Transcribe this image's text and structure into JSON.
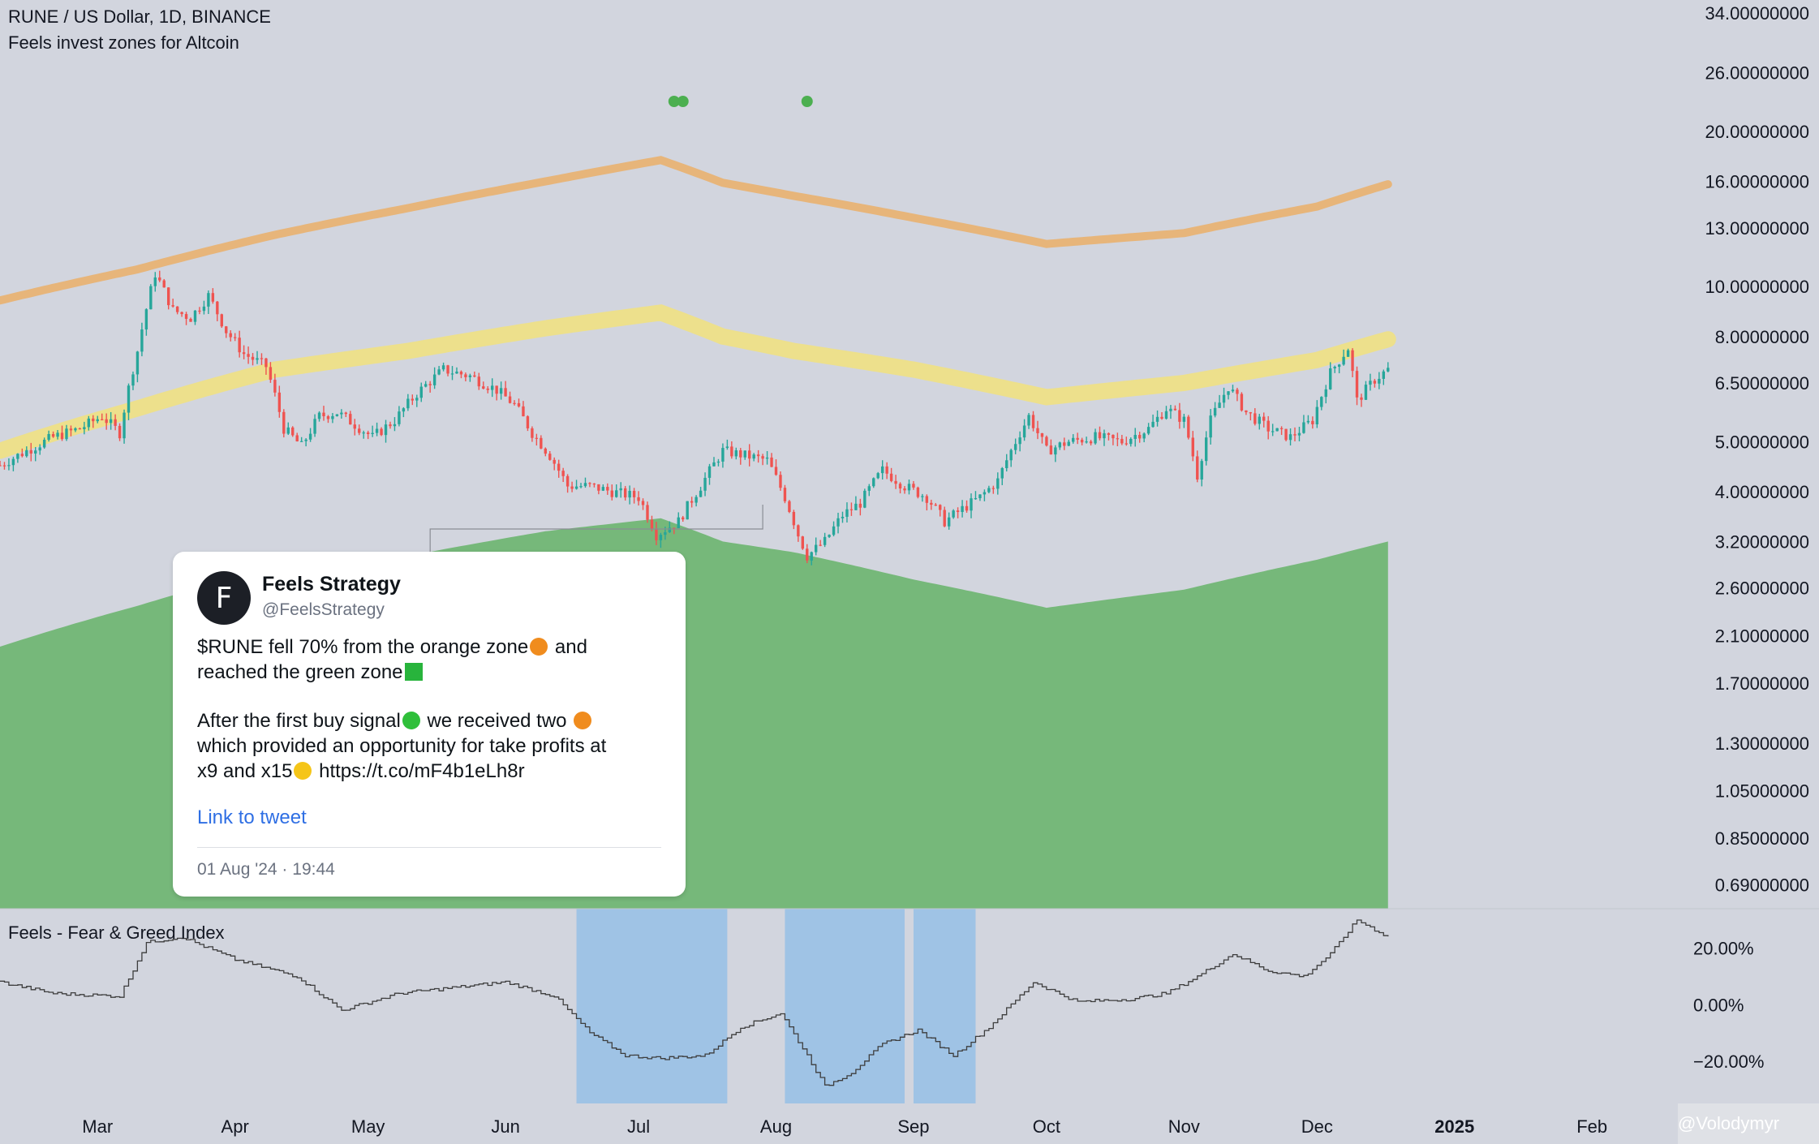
{
  "header": {
    "symbol_line": "RUNE / US Dollar, 1D, BINANCE",
    "indicator_line": "Feels invest zones for Altcoin"
  },
  "subpanel": {
    "title": "Feels - Fear & Greed Index"
  },
  "tweet": {
    "avatar_letter": "F",
    "author": "Feels Strategy",
    "handle": "@FeelsStrategy",
    "line1a": "$RUNE fell 70% from the orange zone",
    "line1b": " and",
    "line2": "reached the green zone",
    "line3a": "After the first buy signal",
    "line3b": " we received two ",
    "line4": "which provided an opportunity for take profits at",
    "line5a": "x9 and x15",
    "line5b": " https://t.co/mF4b1eLh8r",
    "link_label": "Link to tweet",
    "timestamp": "01 Aug '24 · 19:44"
  },
  "watermark": "@Volodymyr",
  "colors": {
    "background": "#d2d5de",
    "up_candle": "#26a69a",
    "down_candle": "#ef5350",
    "orange_band": "#e7b57a",
    "yellow_band": "#ede08c",
    "green_zone": "#76b87a",
    "signal_dot": "#4caf50",
    "fear_zone": "#9fc3e5",
    "index_line": "#3d3d3d"
  },
  "icons": [
    "orange-circle-emoji-icon",
    "green-square-emoji-icon",
    "green-circle-emoji-icon",
    "money-mouth-face-emoji-icon",
    "avatar-logo-icon"
  ],
  "chart_data": {
    "type": "candlestick",
    "title": "RUNE / US Dollar, 1D, BINANCE",
    "indicator": "Feels invest zones for Altcoin",
    "y_scale": "log",
    "y_ticks": [
      "34.00000000",
      "26.00000000",
      "20.00000000",
      "16.00000000",
      "13.00000000",
      "10.00000000",
      "8.00000000",
      "6.50000000",
      "5.00000000",
      "4.00000000",
      "3.20000000",
      "2.60000000",
      "2.10000000",
      "1.70000000",
      "1.30000000",
      "1.05000000",
      "0.85000000",
      "0.69000000"
    ],
    "y_tick_values": [
      34,
      26,
      20,
      16,
      13,
      10,
      8,
      6.5,
      5,
      4,
      3.2,
      2.6,
      2.1,
      1.7,
      1.3,
      1.05,
      0.85,
      0.69
    ],
    "x_ticks": [
      "Mar",
      "Apr",
      "May",
      "Jun",
      "Jul",
      "Aug",
      "Sep",
      "Oct",
      "Nov",
      "Dec",
      "2025",
      "Feb"
    ],
    "x_tick_dates": [
      "2024-03-01",
      "2024-04-01",
      "2024-05-01",
      "2024-06-01",
      "2024-07-01",
      "2024-08-01",
      "2024-09-01",
      "2024-10-01",
      "2024-11-01",
      "2024-12-01",
      "2025-01-01",
      "2025-02-01"
    ],
    "x_range": [
      "2024-02-08",
      "2025-02-07"
    ],
    "y_range": [
      0.62,
      36
    ],
    "price_path": [
      [
        "2024-02-08",
        4.5
      ],
      [
        "2024-02-14",
        4.8
      ],
      [
        "2024-02-20",
        5.1
      ],
      [
        "2024-02-26",
        5.3
      ],
      [
        "2024-03-02",
        5.6
      ],
      [
        "2024-03-06",
        5.2
      ],
      [
        "2024-03-10",
        7.5
      ],
      [
        "2024-03-14",
        10.6
      ],
      [
        "2024-03-18",
        9.0
      ],
      [
        "2024-03-22",
        8.7
      ],
      [
        "2024-03-26",
        9.6
      ],
      [
        "2024-03-30",
        8.2
      ],
      [
        "2024-04-03",
        7.4
      ],
      [
        "2024-04-08",
        7.0
      ],
      [
        "2024-04-12",
        5.3
      ],
      [
        "2024-04-16",
        4.9
      ],
      [
        "2024-04-20",
        5.6
      ],
      [
        "2024-04-24",
        5.7
      ],
      [
        "2024-04-28",
        5.4
      ],
      [
        "2024-05-02",
        5.1
      ],
      [
        "2024-05-07",
        5.5
      ],
      [
        "2024-05-12",
        6.2
      ],
      [
        "2024-05-18",
        6.9
      ],
      [
        "2024-05-24",
        6.7
      ],
      [
        "2024-05-30",
        6.3
      ],
      [
        "2024-06-03",
        5.9
      ],
      [
        "2024-06-07",
        5.2
      ],
      [
        "2024-06-11",
        4.7
      ],
      [
        "2024-06-15",
        4.1
      ],
      [
        "2024-06-20",
        4.1
      ],
      [
        "2024-06-25",
        4.0
      ],
      [
        "2024-07-01",
        3.9
      ],
      [
        "2024-07-05",
        3.3
      ],
      [
        "2024-07-10",
        3.5
      ],
      [
        "2024-07-15",
        4.1
      ],
      [
        "2024-07-20",
        4.8
      ],
      [
        "2024-07-25",
        4.7
      ],
      [
        "2024-07-30",
        4.6
      ],
      [
        "2024-08-03",
        3.9
      ],
      [
        "2024-08-06",
        3.3
      ],
      [
        "2024-08-08",
        3.0
      ],
      [
        "2024-08-12",
        3.2
      ],
      [
        "2024-08-16",
        3.6
      ],
      [
        "2024-08-20",
        3.8
      ],
      [
        "2024-08-25",
        4.4
      ],
      [
        "2024-08-30",
        4.1
      ],
      [
        "2024-09-04",
        3.9
      ],
      [
        "2024-09-08",
        3.5
      ],
      [
        "2024-09-12",
        3.7
      ],
      [
        "2024-09-16",
        3.9
      ],
      [
        "2024-09-20",
        4.2
      ],
      [
        "2024-09-24",
        5.0
      ],
      [
        "2024-09-27",
        5.6
      ],
      [
        "2024-10-01",
        4.8
      ],
      [
        "2024-10-06",
        5.0
      ],
      [
        "2024-10-12",
        5.1
      ],
      [
        "2024-10-18",
        5.0
      ],
      [
        "2024-10-24",
        5.3
      ],
      [
        "2024-10-28",
        5.8
      ],
      [
        "2024-11-01",
        5.5
      ],
      [
        "2024-11-04",
        4.3
      ],
      [
        "2024-11-07",
        5.5
      ],
      [
        "2024-11-11",
        6.4
      ],
      [
        "2024-11-15",
        5.7
      ],
      [
        "2024-11-20",
        5.3
      ],
      [
        "2024-11-25",
        5.1
      ],
      [
        "2024-11-30",
        5.5
      ],
      [
        "2024-12-04",
        6.8
      ],
      [
        "2024-12-08",
        7.6
      ],
      [
        "2024-12-10",
        6.0
      ],
      [
        "2024-12-14",
        6.6
      ],
      [
        "2024-12-17",
        6.9
      ]
    ],
    "orange_band": [
      [
        "2024-02-08",
        9.4
      ],
      [
        "2024-03-10",
        10.8
      ],
      [
        "2024-04-10",
        12.6
      ],
      [
        "2024-05-10",
        14.2
      ],
      [
        "2024-06-10",
        16.0
      ],
      [
        "2024-07-06",
        17.6
      ],
      [
        "2024-07-20",
        15.9
      ],
      [
        "2024-08-05",
        15.0
      ],
      [
        "2024-09-01",
        13.6
      ],
      [
        "2024-10-01",
        12.1
      ],
      [
        "2024-11-01",
        12.7
      ],
      [
        "2024-12-01",
        14.3
      ],
      [
        "2024-12-17",
        15.8
      ]
    ],
    "yellow_band": [
      [
        "2024-02-08",
        4.8
      ],
      [
        "2024-03-10",
        5.8
      ],
      [
        "2024-04-10",
        6.9
      ],
      [
        "2024-05-10",
        7.5
      ],
      [
        "2024-06-10",
        8.3
      ],
      [
        "2024-07-06",
        8.9
      ],
      [
        "2024-07-20",
        8.0
      ],
      [
        "2024-08-05",
        7.5
      ],
      [
        "2024-09-01",
        6.9
      ],
      [
        "2024-10-01",
        6.1
      ],
      [
        "2024-11-01",
        6.5
      ],
      [
        "2024-12-01",
        7.2
      ],
      [
        "2024-12-17",
        7.9
      ]
    ],
    "green_zone_top": [
      [
        "2024-02-08",
        2.0
      ],
      [
        "2024-03-10",
        2.4
      ],
      [
        "2024-04-10",
        2.85
      ],
      [
        "2024-05-10",
        3.0
      ],
      [
        "2024-06-10",
        3.35
      ],
      [
        "2024-07-06",
        3.55
      ],
      [
        "2024-07-20",
        3.2
      ],
      [
        "2024-08-05",
        3.05
      ],
      [
        "2024-09-01",
        2.7
      ],
      [
        "2024-10-01",
        2.38
      ],
      [
        "2024-11-01",
        2.58
      ],
      [
        "2024-12-01",
        2.95
      ],
      [
        "2024-12-17",
        3.2
      ]
    ],
    "buy_signal_dates": [
      "2024-07-09",
      "2024-07-11",
      "2024-08-08"
    ],
    "subpanel": {
      "title": "Feels - Fear & Greed Index",
      "y_ticks": [
        "20.00%",
        "0.00%",
        "−20.00%"
      ],
      "y_tick_values": [
        20,
        0,
        -20
      ],
      "y_range": [
        -35,
        34
      ],
      "index_path": [
        [
          "2024-02-08",
          8
        ],
        [
          "2024-02-20",
          4
        ],
        [
          "2024-03-06",
          3
        ],
        [
          "2024-03-12",
          22
        ],
        [
          "2024-03-20",
          24
        ],
        [
          "2024-04-01",
          16
        ],
        [
          "2024-04-15",
          10
        ],
        [
          "2024-04-25",
          -2
        ],
        [
          "2024-05-08",
          4
        ],
        [
          "2024-05-20",
          6
        ],
        [
          "2024-06-01",
          8
        ],
        [
          "2024-06-12",
          3
        ],
        [
          "2024-06-20",
          -10
        ],
        [
          "2024-06-28",
          -18
        ],
        [
          "2024-07-06",
          -19
        ],
        [
          "2024-07-16",
          -18
        ],
        [
          "2024-07-24",
          -8
        ],
        [
          "2024-08-02",
          -3
        ],
        [
          "2024-08-08",
          -18
        ],
        [
          "2024-08-12",
          -29
        ],
        [
          "2024-08-18",
          -24
        ],
        [
          "2024-08-25",
          -14
        ],
        [
          "2024-09-02",
          -9
        ],
        [
          "2024-09-10",
          -18
        ],
        [
          "2024-09-18",
          -8
        ],
        [
          "2024-09-28",
          8
        ],
        [
          "2024-10-08",
          1
        ],
        [
          "2024-10-20",
          2
        ],
        [
          "2024-10-28",
          4
        ],
        [
          "2024-11-04",
          10
        ],
        [
          "2024-11-12",
          18
        ],
        [
          "2024-11-20",
          12
        ],
        [
          "2024-11-28",
          10
        ],
        [
          "2024-12-04",
          18
        ],
        [
          "2024-12-10",
          30
        ],
        [
          "2024-12-17",
          24
        ]
      ],
      "fear_zones": [
        [
          "2024-06-17",
          "2024-07-21"
        ],
        [
          "2024-08-03",
          "2024-08-30"
        ],
        [
          "2024-09-01",
          "2024-09-15"
        ]
      ]
    }
  }
}
